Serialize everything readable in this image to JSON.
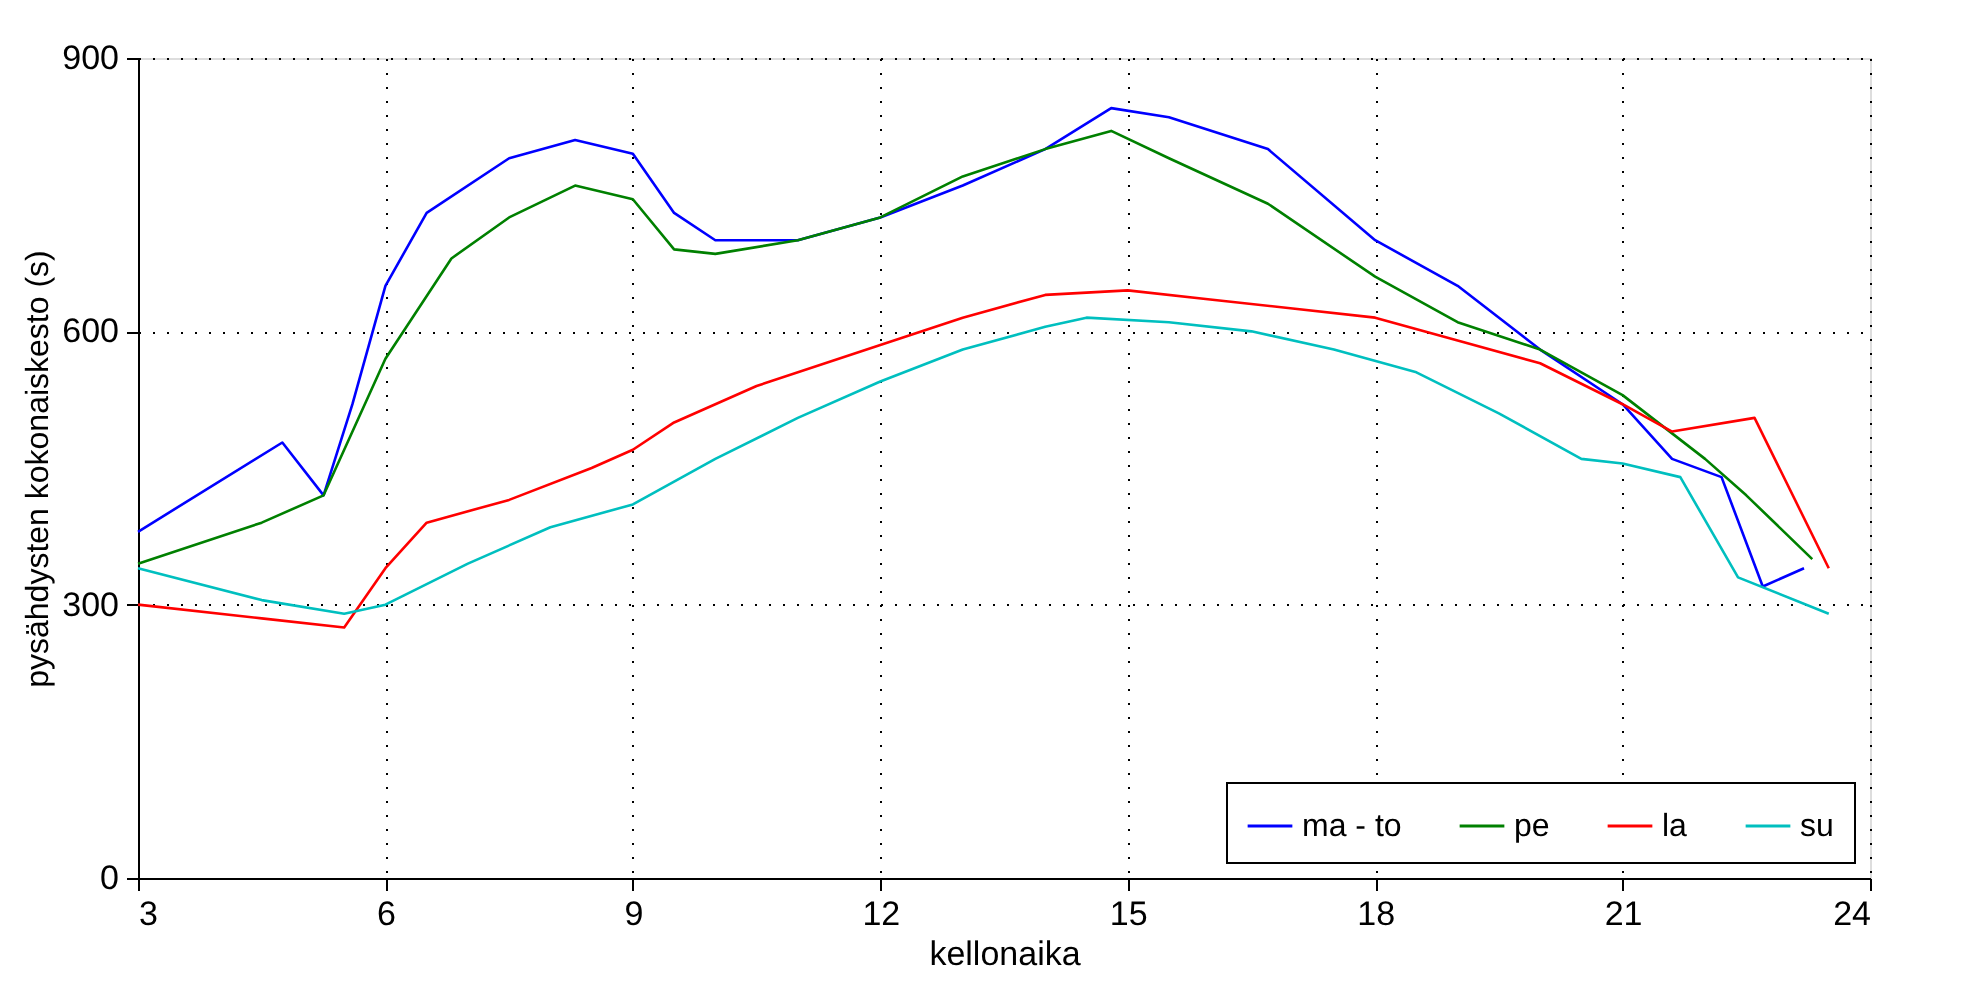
{
  "chart_data": {
    "type": "line",
    "xlabel": "kellonaika",
    "ylabel": "pysähdysten kokonaiskesto (s)",
    "xlim": [
      3,
      24
    ],
    "xticks": [
      3,
      6,
      9,
      12,
      15,
      18,
      21,
      24
    ],
    "ylim": [
      0,
      900
    ],
    "yticks": [
      0,
      300,
      600,
      900
    ],
    "grid": true,
    "legend": "bottom right",
    "line_style": "solid",
    "marker": "none",
    "series": [
      {
        "name": "ma - to",
        "color": "#0000ff",
        "x": [
          3,
          4.75,
          5.25,
          5.6,
          6,
          6.5,
          7.5,
          8.3,
          9,
          9.5,
          10,
          11,
          12,
          13,
          14,
          14.8,
          15.5,
          16.7,
          18,
          19,
          20,
          21,
          21.6,
          22.2,
          22.7,
          23.2
        ],
        "values": [
          380,
          478,
          420,
          520,
          650,
          730,
          790,
          810,
          795,
          730,
          700,
          700,
          725,
          760,
          800,
          845,
          835,
          800,
          700,
          650,
          580,
          520,
          460,
          440,
          320,
          340
        ]
      },
      {
        "name": "pe",
        "color": "#008000",
        "x": [
          3,
          4.5,
          5.25,
          6,
          6.8,
          7.5,
          8.3,
          9,
          9.5,
          10,
          11,
          12,
          13,
          14,
          14.8,
          15.5,
          16.7,
          18,
          19,
          20,
          21,
          22,
          22.5,
          23.3
        ],
        "values": [
          345,
          390,
          420,
          570,
          680,
          725,
          760,
          745,
          690,
          685,
          700,
          725,
          770,
          800,
          820,
          790,
          740,
          660,
          610,
          580,
          530,
          460,
          420,
          350
        ]
      },
      {
        "name": "la",
        "color": "#ff0000",
        "x": [
          3,
          4.5,
          5.5,
          6,
          6.5,
          7.5,
          8.5,
          9,
          9.5,
          10.5,
          12,
          13,
          14,
          15,
          16,
          17,
          18,
          19,
          20,
          21,
          21.6,
          22.6,
          23.5
        ],
        "values": [
          300,
          285,
          275,
          340,
          390,
          415,
          450,
          470,
          500,
          540,
          585,
          615,
          640,
          645,
          635,
          625,
          615,
          590,
          565,
          520,
          490,
          505,
          340
        ]
      },
      {
        "name": "su",
        "color": "#00bfbf",
        "x": [
          3,
          4.5,
          5.5,
          6,
          7,
          8,
          9,
          10,
          11,
          12,
          13,
          14,
          14.5,
          15.5,
          16.5,
          17.5,
          18.5,
          19.5,
          20.5,
          21,
          21.7,
          22.4,
          23.5
        ],
        "values": [
          340,
          305,
          290,
          300,
          345,
          385,
          410,
          460,
          505,
          545,
          580,
          605,
          615,
          610,
          600,
          580,
          555,
          510,
          460,
          455,
          440,
          330,
          290
        ]
      }
    ]
  }
}
